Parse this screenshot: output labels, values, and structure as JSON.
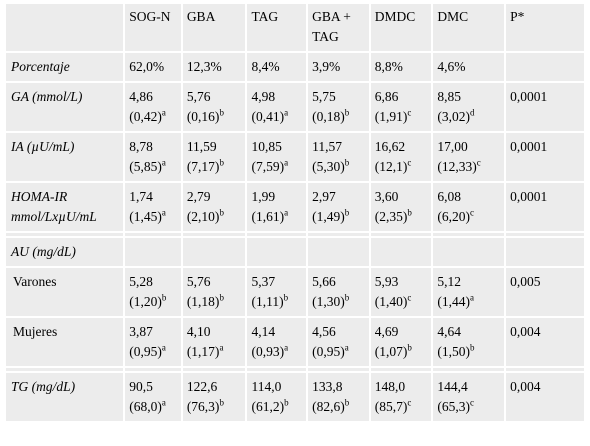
{
  "header": [
    "",
    "SOG-N",
    "GBA",
    "TAG",
    "GBA + TAG",
    "DMDC",
    "DMC",
    "P*"
  ],
  "rows": [
    {
      "label": "Porcentaje",
      "italic": true,
      "cells": [
        {
          "v": "62,0%"
        },
        {
          "v": "12,3%"
        },
        {
          "v": "8,4%"
        },
        {
          "v": "3,9%"
        },
        {
          "v": "8,8%"
        },
        {
          "v": "4,6%"
        }
      ],
      "p": ""
    },
    {
      "label": "GA (mmol/L)",
      "italic": true,
      "cells": [
        {
          "v": "4,86",
          "sd": "(0,42)",
          "sup": "a"
        },
        {
          "v": "5,76",
          "sd": "(0,16)",
          "sup": "b"
        },
        {
          "v": "4,98",
          "sd": "(0,41)",
          "sup": "a"
        },
        {
          "v": "5,75",
          "sd": "(0,18)",
          "sup": "b"
        },
        {
          "v": "6,86",
          "sd": "(1,91)",
          "sup": "c"
        },
        {
          "v": "8,85",
          "sd": "(3,02)",
          "sup": "d"
        }
      ],
      "p": "0,0001"
    },
    {
      "label": "IA (µU/mL)",
      "italic": true,
      "cells": [
        {
          "v": "8,78",
          "sd": "(5,85)",
          "sup": "a"
        },
        {
          "v": "11,59",
          "sd": "(7,17)",
          "sup": "b"
        },
        {
          "v": "10,85",
          "sd": "(7,59)",
          "sup": "a"
        },
        {
          "v": "11,57",
          "sd": "(5,30)",
          "sup": "b"
        },
        {
          "v": "16,62",
          "sd": "(12,1)",
          "sup": "c"
        },
        {
          "v": "17,00",
          "sd": "(12,33)",
          "sup": "c"
        }
      ],
      "p": "0,0001"
    },
    {
      "label": "HOMA-IR mmol/LxµU/mL",
      "italic": true,
      "cells": [
        {
          "v": "1,74",
          "sd": "(1,45)",
          "sup": "a"
        },
        {
          "v": "2,79",
          "sd": "(2,10)",
          "sup": "b"
        },
        {
          "v": "1,99",
          "sd": "(1,61)",
          "sup": "a"
        },
        {
          "v": "2,97",
          "sd": "(1,49)",
          "sup": "b"
        },
        {
          "v": "3,60",
          "sd": "(2,35)",
          "sup": "b"
        },
        {
          "v": "6,08",
          "sd": "(6,20)",
          "sup": "c"
        }
      ],
      "p": "0,0001"
    },
    {
      "gap": true
    },
    {
      "label": "AU (mg/dL)",
      "italic": true,
      "section": true,
      "cells": [],
      "p": ""
    },
    {
      "label": "Varones",
      "italic": false,
      "sub": true,
      "cells": [
        {
          "v": "5,28",
          "sd": "(1,20)",
          "sup": "b"
        },
        {
          "v": "5,76",
          "sd": "(1,18)",
          "sup": "b"
        },
        {
          "v": "5,37",
          "sd": "(1,11)",
          "sup": "b"
        },
        {
          "v": "5,66",
          "sd": "(1,30)",
          "sup": "b"
        },
        {
          "v": "5,93",
          "sd": "(1,40)",
          "sup": "c"
        },
        {
          "v": "5,12",
          "sd": "(1,44)",
          "sup": "a"
        }
      ],
      "p": "0,005"
    },
    {
      "label": "Mujeres",
      "italic": false,
      "sub": true,
      "cells": [
        {
          "v": "3,87",
          "sd": "(0,95)",
          "sup": "a"
        },
        {
          "v": "4,10",
          "sd": "(1,17)",
          "sup": "a"
        },
        {
          "v": "4,14",
          "sd": "(0,93)",
          "sup": "a"
        },
        {
          "v": "4,56",
          "sd": "(0,95)",
          "sup": "a"
        },
        {
          "v": "4,69",
          "sd": "(1,07)",
          "sup": "b"
        },
        {
          "v": "4,64",
          "sd": "(1,50)",
          "sup": "b"
        }
      ],
      "p": "0,004"
    },
    {
      "gap": true
    },
    {
      "label": "TG (mg/dL)",
      "italic": true,
      "cells": [
        {
          "v": "90,5",
          "sd": "(68,0)",
          "sup": "a"
        },
        {
          "v": "122,6",
          "sd": "(76,3)",
          "sup": "b"
        },
        {
          "v": "114,0",
          "sd": "(61,2)",
          "sup": "b"
        },
        {
          "v": "133,8",
          "sd": "(82,6)",
          "sup": "b"
        },
        {
          "v": "148,0",
          "sd": "(85,7)",
          "sup": "c"
        },
        {
          "v": "144,4",
          "sd": "(65,3)",
          "sup": "c"
        }
      ],
      "p": "0,004"
    }
  ]
}
